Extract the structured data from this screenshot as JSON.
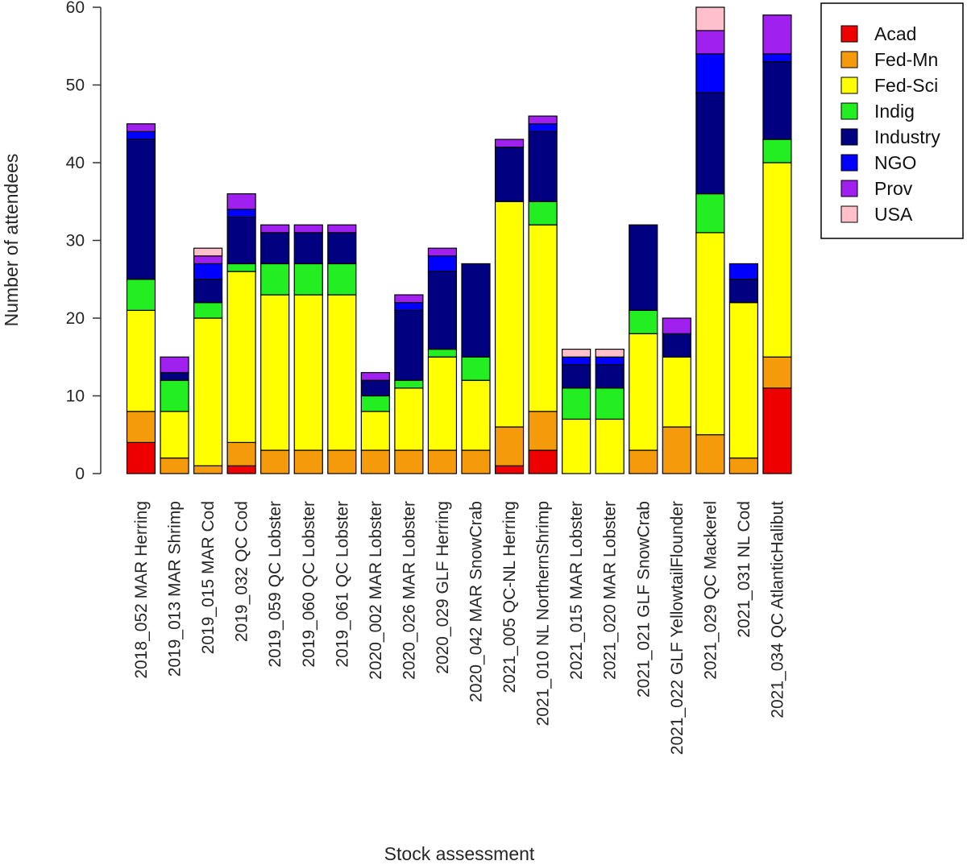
{
  "chart_data": {
    "type": "bar",
    "stacked": true,
    "title": "",
    "xlabel": "Stock assessment",
    "ylabel": "Number of attendees",
    "ylim": [
      0,
      60
    ],
    "yticks": [
      0,
      10,
      20,
      30,
      40,
      50,
      60
    ],
    "legend_position": "top-right",
    "categories": [
      "2018_052 MAR Herring",
      "2019_013 MAR Shrimp",
      "2019_015 MAR Cod",
      "2019_032 QC Cod",
      "2019_059 QC Lobster",
      "2019_060 QC Lobster",
      "2019_061 QC Lobster",
      "2020_002 MAR Lobster",
      "2020_026 MAR Lobster",
      "2020_029 GLF Herring",
      "2020_042 MAR SnowCrab",
      "2021_005 QC-NL Herring",
      "2021_010 NL NorthernShrimp",
      "2021_015 MAR Lobster",
      "2021_020 MAR Lobster",
      "2021_021 GLF SnowCrab",
      "2021_022 GLF YellowtailFlounder",
      "2021_029 QC Mackerel",
      "2021_031 NL Cod",
      "2021_034 QC AtlanticHalibut"
    ],
    "series": [
      {
        "name": "Acad",
        "color": "#ee0000",
        "values": [
          4,
          0,
          0,
          1,
          0,
          0,
          0,
          0,
          0,
          0,
          0,
          1,
          3,
          0,
          0,
          0,
          0,
          0,
          0,
          11
        ]
      },
      {
        "name": "Fed-Mn",
        "color": "#f59a0a",
        "values": [
          4,
          2,
          1,
          3,
          3,
          3,
          3,
          3,
          3,
          3,
          3,
          5,
          5,
          0,
          0,
          3,
          6,
          5,
          2,
          4
        ]
      },
      {
        "name": "Fed-Sci",
        "color": "#ffff00",
        "values": [
          13,
          6,
          19,
          22,
          20,
          20,
          20,
          5,
          8,
          12,
          9,
          29,
          24,
          7,
          7,
          15,
          9,
          26,
          20,
          25
        ]
      },
      {
        "name": "Indig",
        "color": "#22ee22",
        "values": [
          4,
          4,
          2,
          1,
          4,
          4,
          4,
          2,
          1,
          1,
          3,
          0,
          3,
          4,
          4,
          3,
          0,
          5,
          0,
          3
        ]
      },
      {
        "name": "Industry",
        "color": "#000080",
        "values": [
          18,
          1,
          3,
          6,
          4,
          4,
          4,
          2,
          9,
          10,
          12,
          7,
          9,
          3,
          3,
          11,
          3,
          13,
          3,
          10
        ]
      },
      {
        "name": "NGO",
        "color": "#0000ff",
        "values": [
          1,
          0,
          2,
          1,
          0,
          0,
          0,
          0,
          1,
          2,
          0,
          0,
          1,
          1,
          1,
          0,
          0,
          5,
          2,
          1
        ]
      },
      {
        "name": "Prov",
        "color": "#a020f0",
        "values": [
          1,
          2,
          1,
          2,
          1,
          1,
          1,
          1,
          1,
          1,
          0,
          1,
          1,
          0,
          0,
          0,
          2,
          3,
          0,
          5
        ]
      },
      {
        "name": "USA",
        "color": "#ffc0cb",
        "values": [
          0,
          0,
          1,
          0,
          0,
          0,
          0,
          0,
          0,
          0,
          0,
          0,
          0,
          1,
          1,
          0,
          0,
          3,
          0,
          0
        ]
      }
    ]
  }
}
